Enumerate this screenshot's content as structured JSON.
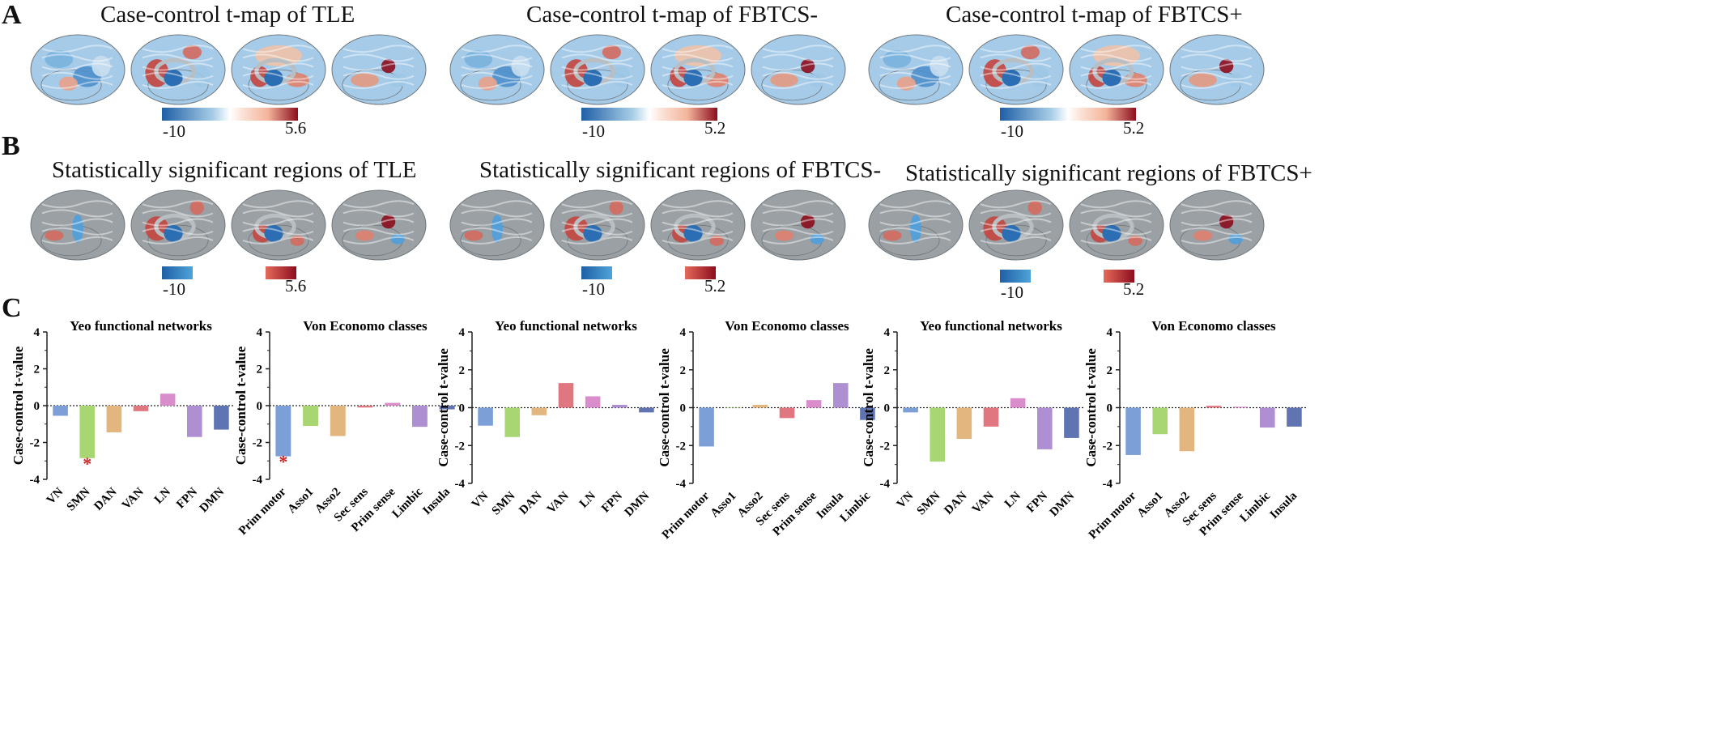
{
  "panels": {
    "A": {
      "letter": "A",
      "titles": [
        "Case-control t-map of TLE",
        "Case-control t-map of FBTCS-",
        "Case-control t-map of FBTCS+"
      ],
      "colorbars": [
        {
          "min": "-10",
          "max": "5.6"
        },
        {
          "min": "-10",
          "max": "5.2"
        },
        {
          "min": "-10",
          "max": "5.2"
        }
      ]
    },
    "B": {
      "letter": "B",
      "titles": [
        "Statistically significant regions of TLE",
        "Statistically significant regions of FBTCS-",
        "Statistically significant regions of FBTCS+"
      ],
      "colorbars": [
        {
          "min": "-10",
          "max": "5.6"
        },
        {
          "min": "-10",
          "max": "5.2"
        },
        {
          "min": "-10",
          "max": "5.2"
        }
      ]
    },
    "C": {
      "letter": "C"
    }
  },
  "colors": {
    "neg_dark": "#1f5fa6",
    "neg_light": "#9ccbe8",
    "pos_light": "#f3b49a",
    "pos_dark": "#8c0d1e",
    "brain_gray": "#9aa0a4"
  },
  "chart_data": [
    {
      "type": "bar",
      "title": "Yeo functional networks",
      "ylabel": "Case-control t-value",
      "ylim": [
        -4,
        4
      ],
      "yticks": [
        "4",
        "2",
        "0",
        "-2",
        "-4"
      ],
      "categories": [
        "VN",
        "SMN",
        "DAN",
        "VAN",
        "LN",
        "FPN",
        "DMN"
      ],
      "values": [
        -0.55,
        -2.85,
        -1.45,
        -0.3,
        0.65,
        -1.7,
        -1.3
      ],
      "colors": [
        "#7b9fd6",
        "#a8d672",
        "#e3b57f",
        "#e0767f",
        "#d98ecb",
        "#ae8fd1",
        "#5f74b1"
      ],
      "significant": [
        "SMN"
      ]
    },
    {
      "type": "bar",
      "title": "Von Economo classes",
      "ylabel": "Case-control t-value",
      "ylim": [
        -4,
        4
      ],
      "yticks": [
        "4",
        "2",
        "0",
        "-2",
        "-4"
      ],
      "categories": [
        "Prim motor",
        "Asso1",
        "Asso2",
        "Sec sens",
        "Prim sense",
        "Limbic",
        "Insula"
      ],
      "values": [
        -2.75,
        -1.1,
        -1.65,
        -0.1,
        0.15,
        -1.15,
        -0.2
      ],
      "colors": [
        "#7b9fd6",
        "#a8d672",
        "#e3b57f",
        "#e0767f",
        "#d98ecb",
        "#ae8fd1",
        "#5f74b1"
      ],
      "significant": [
        "Prim motor"
      ]
    },
    {
      "type": "bar",
      "title": "Yeo functional networks",
      "ylabel": "Case-control t-value",
      "ylim": [
        -4,
        4
      ],
      "yticks": [
        "4",
        "2",
        "0",
        "-2",
        "-4"
      ],
      "categories": [
        "VN",
        "SMN",
        "DAN",
        "VAN",
        "LN",
        "FPN",
        "DMN"
      ],
      "values": [
        -0.95,
        -1.55,
        -0.4,
        1.3,
        0.6,
        0.15,
        -0.25
      ],
      "colors": [
        "#7b9fd6",
        "#a8d672",
        "#e3b57f",
        "#e0767f",
        "#d98ecb",
        "#ae8fd1",
        "#5f74b1"
      ],
      "significant": []
    },
    {
      "type": "bar",
      "title": "Von Economo classes",
      "ylabel": "Case-control t-value",
      "ylim": [
        -4,
        4
      ],
      "yticks": [
        "4",
        "2",
        "0",
        "-2",
        "-4"
      ],
      "categories": [
        "Prim motor",
        "Asso1",
        "Asso2",
        "Sec sens",
        "Prim sense",
        "Insula",
        "Limbic"
      ],
      "values": [
        -2.05,
        0,
        0.15,
        -0.55,
        0.4,
        1.3,
        -0.65
      ],
      "colors": [
        "#7b9fd6",
        "#a8d672",
        "#e3b57f",
        "#e0767f",
        "#d98ecb",
        "#ae8fd1",
        "#5f74b1"
      ],
      "significant": []
    },
    {
      "type": "bar",
      "title": "Yeo functional networks",
      "ylabel": "Case-control t-value",
      "ylim": [
        -4,
        4
      ],
      "yticks": [
        "4",
        "2",
        "0",
        "-2",
        "-4"
      ],
      "categories": [
        "VN",
        "SMN",
        "DAN",
        "VAN",
        "LN",
        "FPN",
        "DMN"
      ],
      "values": [
        -0.25,
        -2.85,
        -1.65,
        -1.0,
        0.5,
        -2.2,
        -1.6
      ],
      "colors": [
        "#7b9fd6",
        "#a8d672",
        "#e3b57f",
        "#e0767f",
        "#d98ecb",
        "#ae8fd1",
        "#5f74b1"
      ],
      "significant": []
    },
    {
      "type": "bar",
      "title": "Von Economo classes",
      "ylabel": "Case-control t-value",
      "ylim": [
        -4,
        4
      ],
      "yticks": [
        "4",
        "2",
        "0",
        "-2",
        "-4"
      ],
      "categories": [
        "Prim motor",
        "Asso1",
        "Asso2",
        "Sec sens",
        "Prim sense",
        "Limbic",
        "Insula"
      ],
      "values": [
        -2.5,
        -1.4,
        -2.3,
        0.1,
        0.05,
        -1.05,
        -1.0
      ],
      "colors": [
        "#7b9fd6",
        "#a8d672",
        "#e3b57f",
        "#e0767f",
        "#d98ecb",
        "#ae8fd1",
        "#5f74b1"
      ],
      "significant": []
    }
  ]
}
